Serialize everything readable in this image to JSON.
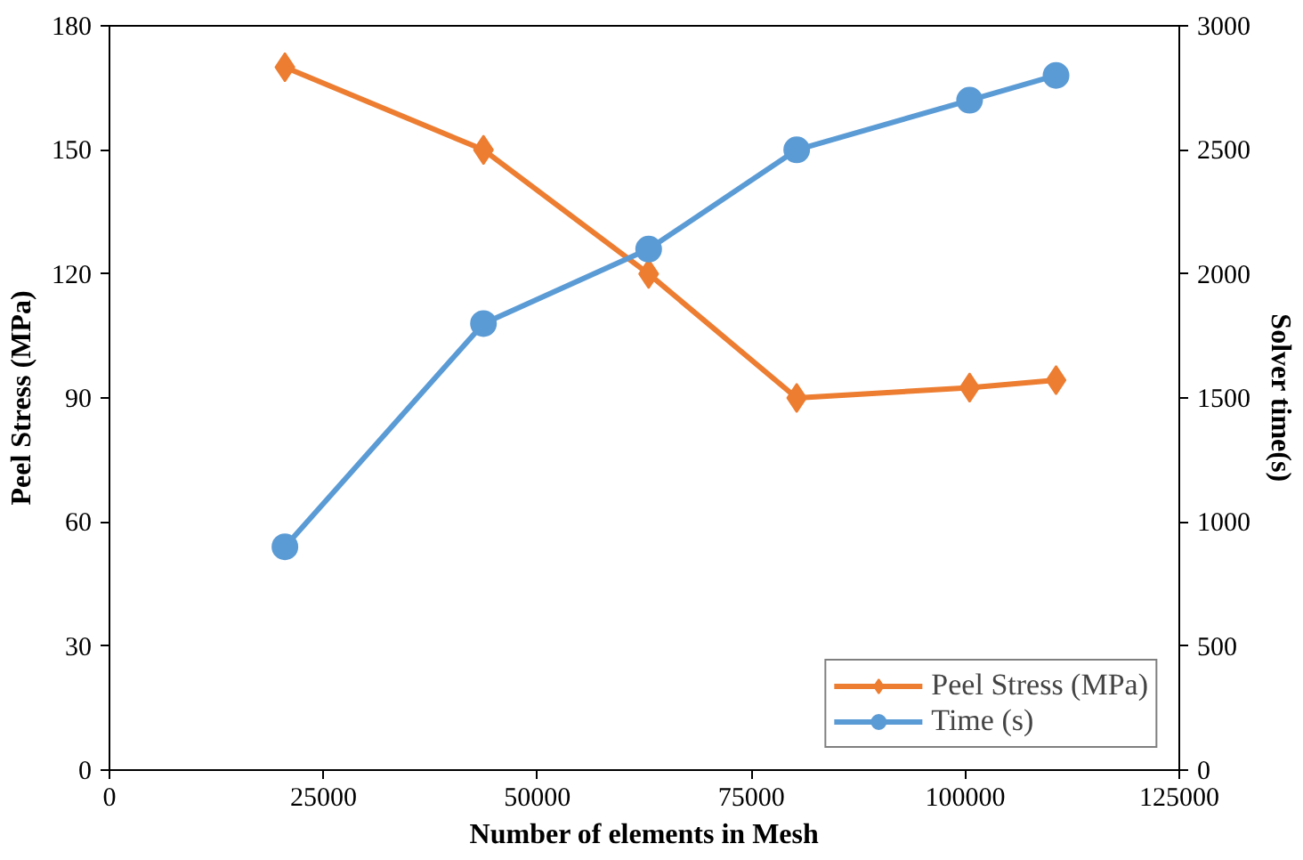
{
  "chart_data": {
    "type": "line",
    "xlabel": "Number of elements in Mesh",
    "ylabel": "Peel Stress (MPa)",
    "y2label": "Solver time(s)",
    "x": [
      20500,
      43700,
      63000,
      80300,
      100500,
      110600
    ],
    "series": [
      {
        "name": "Peel Stress (MPa)",
        "color": "#ed7d31",
        "marker": "diamond",
        "values": [
          170,
          150,
          120,
          90,
          92.5,
          94.3
        ]
      },
      {
        "name": "Time (s)",
        "color": "#5b9bd5",
        "marker": "circle",
        "axis": "y2",
        "values": [
          900,
          1800,
          2100,
          2500,
          2700,
          2800
        ]
      }
    ],
    "xlim": [
      0,
      125000
    ],
    "xticks": [
      0,
      25000,
      50000,
      75000,
      100000,
      125000
    ],
    "ylim": [
      0,
      180
    ],
    "yticks": [
      0,
      30,
      60,
      90,
      120,
      150,
      180
    ],
    "y2lim": [
      0,
      3000
    ],
    "y2ticks": [
      0,
      500,
      1000,
      1500,
      2000,
      2500,
      3000
    ],
    "grid": false,
    "legend": "bottom right",
    "line_style": "solid"
  }
}
